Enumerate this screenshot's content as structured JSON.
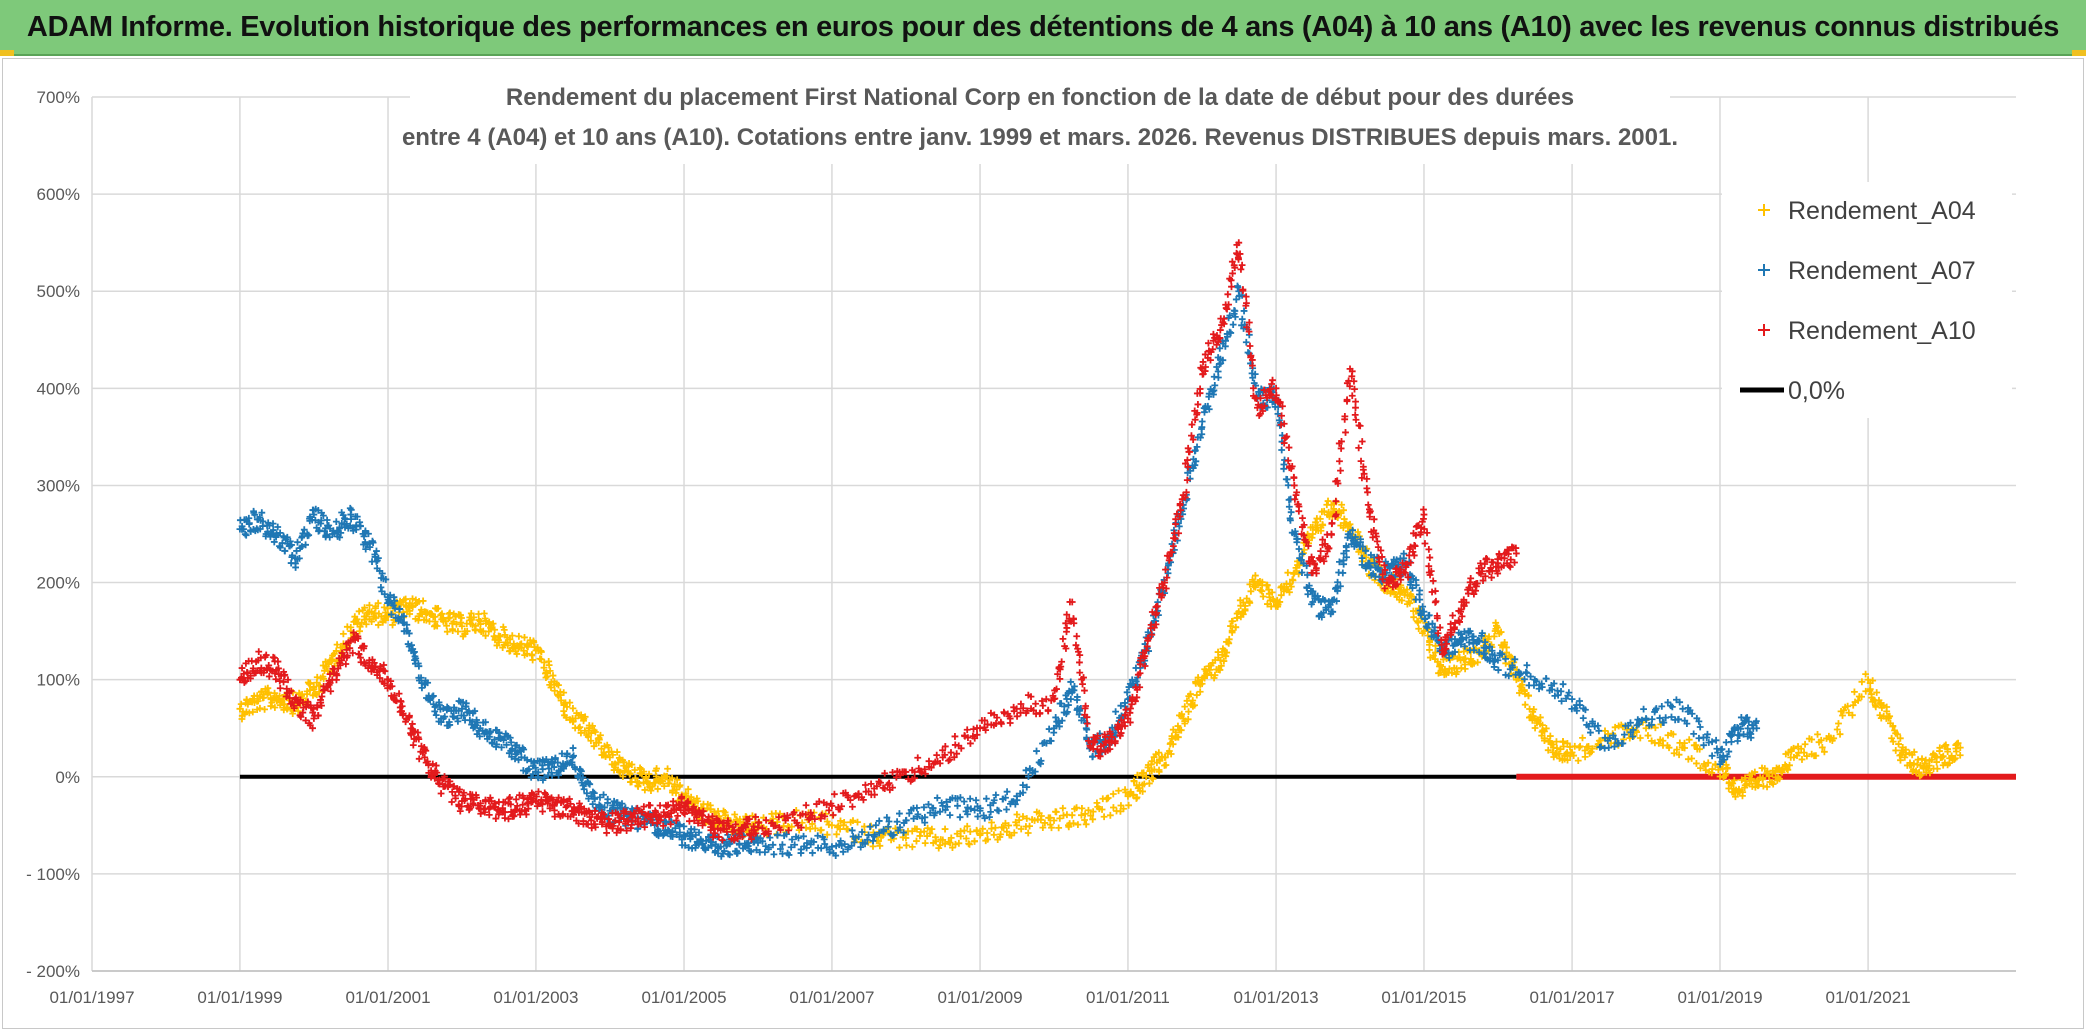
{
  "header": {
    "banner_title": "ADAM Informe. Evolution historique des performances en euros pour des détentions de 4 ans (A04) à 10 ans (A10) avec les revenus connus distribués"
  },
  "chart_data": {
    "type": "scatter",
    "title_line1": "Rendement du placement First National Corp en fonction de la date de début pour des durées",
    "title_line2": "entre 4 (A04) et 10 ans (A10). Cotations entre janv. 1999 et mars. 2026. Revenus DISTRIBUES depuis mars. 2001.",
    "x_tick_labels": [
      "01/01/1997",
      "01/01/1999",
      "01/01/2001",
      "01/01/2003",
      "01/01/2005",
      "01/01/2007",
      "01/01/2009",
      "01/01/2011",
      "01/01/2013",
      "01/01/2015",
      "01/01/2017",
      "01/01/2019",
      "01/01/2021"
    ],
    "y_tick_labels": [
      "700%",
      "600%",
      "500%",
      "400%",
      "300%",
      "200%",
      "100%",
      "0%",
      "- 100%",
      "- 200%"
    ],
    "y_ticks": [
      700,
      600,
      500,
      400,
      300,
      200,
      100,
      0,
      -100,
      -200
    ],
    "xlim": [
      "1997-01-01",
      "2023-01-01"
    ],
    "ylim": [
      -200,
      700
    ],
    "grid": true,
    "legend_position": "top-right",
    "series": [
      {
        "name": "Rendement_A04",
        "color": "#ffc000",
        "marker": "+",
        "points": [
          [
            "1999-01-01",
            70
          ],
          [
            "1999-04-01",
            78
          ],
          [
            "1999-07-01",
            82
          ],
          [
            "1999-10-01",
            75
          ],
          [
            "2000-01-01",
            90
          ],
          [
            "2000-04-01",
            120
          ],
          [
            "2000-07-01",
            150
          ],
          [
            "2000-10-01",
            170
          ],
          [
            "2001-01-01",
            165
          ],
          [
            "2001-04-01",
            175
          ],
          [
            "2001-07-01",
            170
          ],
          [
            "2001-10-01",
            160
          ],
          [
            "2002-01-01",
            155
          ],
          [
            "2002-04-01",
            160
          ],
          [
            "2002-07-01",
            145
          ],
          [
            "2002-10-01",
            135
          ],
          [
            "2003-01-01",
            130
          ],
          [
            "2003-04-01",
            95
          ],
          [
            "2003-07-01",
            60
          ],
          [
            "2003-10-01",
            45
          ],
          [
            "2004-01-01",
            20
          ],
          [
            "2004-04-01",
            5
          ],
          [
            "2004-07-01",
            -5
          ],
          [
            "2004-10-01",
            0
          ],
          [
            "2005-01-01",
            -20
          ],
          [
            "2005-04-01",
            -35
          ],
          [
            "2005-07-01",
            -45
          ],
          [
            "2005-10-01",
            -50
          ],
          [
            "2006-01-01",
            -52
          ],
          [
            "2006-07-01",
            -45
          ],
          [
            "2007-01-01",
            -50
          ],
          [
            "2007-07-01",
            -60
          ],
          [
            "2008-01-01",
            -63
          ],
          [
            "2008-07-01",
            -65
          ],
          [
            "2009-01-01",
            -60
          ],
          [
            "2009-07-01",
            -50
          ],
          [
            "2010-01-01",
            -45
          ],
          [
            "2010-07-01",
            -40
          ],
          [
            "2011-01-01",
            -20
          ],
          [
            "2011-04-01",
            0
          ],
          [
            "2011-07-01",
            20
          ],
          [
            "2011-10-01",
            60
          ],
          [
            "2012-01-01",
            100
          ],
          [
            "2012-04-01",
            120
          ],
          [
            "2012-07-01",
            170
          ],
          [
            "2012-10-01",
            200
          ],
          [
            "2013-01-01",
            180
          ],
          [
            "2013-04-01",
            210
          ],
          [
            "2013-07-01",
            250
          ],
          [
            "2013-10-01",
            280
          ],
          [
            "2014-01-01",
            260
          ],
          [
            "2014-04-01",
            220
          ],
          [
            "2014-07-01",
            200
          ],
          [
            "2014-10-01",
            190
          ],
          [
            "2015-01-01",
            150
          ],
          [
            "2015-04-01",
            110
          ],
          [
            "2015-07-01",
            120
          ],
          [
            "2015-10-01",
            130
          ],
          [
            "2016-01-01",
            150
          ],
          [
            "2016-04-01",
            100
          ],
          [
            "2016-07-01",
            60
          ],
          [
            "2016-10-01",
            30
          ],
          [
            "2017-01-01",
            25
          ],
          [
            "2017-07-01",
            40
          ],
          [
            "2018-01-01",
            50
          ],
          [
            "2018-07-01",
            30
          ],
          [
            "2019-01-01",
            10
          ],
          [
            "2019-04-01",
            -15
          ],
          [
            "2019-07-01",
            -5
          ],
          [
            "2019-10-01",
            5
          ],
          [
            "2020-01-01",
            20
          ],
          [
            "2020-07-01",
            40
          ],
          [
            "2021-01-01",
            100
          ],
          [
            "2021-04-01",
            60
          ],
          [
            "2021-07-01",
            20
          ],
          [
            "2021-10-01",
            10
          ],
          [
            "2022-01-01",
            20
          ],
          [
            "2022-04-01",
            30
          ]
        ]
      },
      {
        "name": "Rendement_A07",
        "color": "#1f77b4",
        "marker": "+",
        "points": [
          [
            "1999-01-01",
            255
          ],
          [
            "1999-04-01",
            265
          ],
          [
            "1999-07-01",
            250
          ],
          [
            "1999-10-01",
            225
          ],
          [
            "2000-01-01",
            270
          ],
          [
            "2000-04-01",
            250
          ],
          [
            "2000-07-01",
            270
          ],
          [
            "2000-10-01",
            240
          ],
          [
            "2001-01-01",
            185
          ],
          [
            "2001-04-01",
            150
          ],
          [
            "2001-07-01",
            95
          ],
          [
            "2001-10-01",
            60
          ],
          [
            "2002-01-01",
            70
          ],
          [
            "2002-04-01",
            50
          ],
          [
            "2002-07-01",
            40
          ],
          [
            "2002-10-01",
            25
          ],
          [
            "2003-01-01",
            5
          ],
          [
            "2003-04-01",
            10
          ],
          [
            "2003-07-01",
            20
          ],
          [
            "2003-10-01",
            -20
          ],
          [
            "2004-01-01",
            -35
          ],
          [
            "2004-04-01",
            -40
          ],
          [
            "2004-07-01",
            -45
          ],
          [
            "2004-10-01",
            -55
          ],
          [
            "2005-01-01",
            -60
          ],
          [
            "2005-04-01",
            -70
          ],
          [
            "2005-07-01",
            -72
          ],
          [
            "2005-10-01",
            -70
          ],
          [
            "2006-01-01",
            -68
          ],
          [
            "2006-07-01",
            -70
          ],
          [
            "2007-01-01",
            -72
          ],
          [
            "2007-07-01",
            -60
          ],
          [
            "2008-01-01",
            -45
          ],
          [
            "2008-07-01",
            -30
          ],
          [
            "2009-01-01",
            -35
          ],
          [
            "2009-07-01",
            -20
          ],
          [
            "2010-01-01",
            50
          ],
          [
            "2010-04-01",
            90
          ],
          [
            "2010-07-01",
            30
          ],
          [
            "2010-10-01",
            40
          ],
          [
            "2011-01-01",
            80
          ],
          [
            "2011-04-01",
            130
          ],
          [
            "2011-07-01",
            200
          ],
          [
            "2011-10-01",
            280
          ],
          [
            "2012-01-01",
            360
          ],
          [
            "2012-04-01",
            430
          ],
          [
            "2012-07-01",
            500
          ],
          [
            "2012-10-01",
            390
          ],
          [
            "2013-01-01",
            390
          ],
          [
            "2013-04-01",
            250
          ],
          [
            "2013-07-01",
            180
          ],
          [
            "2013-10-01",
            170
          ],
          [
            "2014-01-01",
            250
          ],
          [
            "2014-04-01",
            220
          ],
          [
            "2014-07-01",
            210
          ],
          [
            "2014-10-01",
            220
          ],
          [
            "2015-01-01",
            170
          ],
          [
            "2015-04-01",
            130
          ],
          [
            "2015-07-01",
            140
          ],
          [
            "2015-10-01",
            140
          ],
          [
            "2016-01-01",
            120
          ],
          [
            "2016-07-01",
            100
          ],
          [
            "2017-01-01",
            80
          ],
          [
            "2017-07-01",
            30
          ],
          [
            "2018-01-01",
            60
          ],
          [
            "2018-07-01",
            70
          ],
          [
            "2019-01-01",
            20
          ],
          [
            "2019-04-01",
            50
          ],
          [
            "2019-07-01",
            50
          ]
        ]
      },
      {
        "name": "Rendement_A10",
        "color": "#e31a1c",
        "marker": "+",
        "points": [
          [
            "1999-01-01",
            100
          ],
          [
            "1999-04-01",
            120
          ],
          [
            "1999-07-01",
            110
          ],
          [
            "1999-10-01",
            80
          ],
          [
            "2000-01-01",
            60
          ],
          [
            "2000-04-01",
            100
          ],
          [
            "2000-07-01",
            140
          ],
          [
            "2000-10-01",
            120
          ],
          [
            "2001-01-01",
            100
          ],
          [
            "2001-04-01",
            60
          ],
          [
            "2001-07-01",
            20
          ],
          [
            "2001-10-01",
            -10
          ],
          [
            "2002-01-01",
            -25
          ],
          [
            "2002-04-01",
            -30
          ],
          [
            "2002-07-01",
            -35
          ],
          [
            "2002-10-01",
            -30
          ],
          [
            "2003-01-01",
            -25
          ],
          [
            "2003-04-01",
            -30
          ],
          [
            "2003-07-01",
            -35
          ],
          [
            "2003-10-01",
            -45
          ],
          [
            "2004-01-01",
            -48
          ],
          [
            "2004-04-01",
            -45
          ],
          [
            "2004-07-01",
            -40
          ],
          [
            "2004-10-01",
            -40
          ],
          [
            "2005-01-01",
            -30
          ],
          [
            "2005-04-01",
            -45
          ],
          [
            "2005-07-01",
            -55
          ],
          [
            "2005-10-01",
            -55
          ],
          [
            "2006-01-01",
            -52
          ],
          [
            "2006-07-01",
            -45
          ],
          [
            "2007-01-01",
            -30
          ],
          [
            "2007-07-01",
            -15
          ],
          [
            "2008-01-01",
            5
          ],
          [
            "2008-07-01",
            20
          ],
          [
            "2009-01-01",
            50
          ],
          [
            "2009-07-01",
            70
          ],
          [
            "2010-01-01",
            80
          ],
          [
            "2010-04-01",
            180
          ],
          [
            "2010-07-01",
            30
          ],
          [
            "2010-10-01",
            35
          ],
          [
            "2011-01-01",
            60
          ],
          [
            "2011-04-01",
            130
          ],
          [
            "2011-07-01",
            200
          ],
          [
            "2011-10-01",
            290
          ],
          [
            "2012-01-01",
            420
          ],
          [
            "2012-04-01",
            460
          ],
          [
            "2012-07-01",
            550
          ],
          [
            "2012-10-01",
            380
          ],
          [
            "2013-01-01",
            400
          ],
          [
            "2013-04-01",
            300
          ],
          [
            "2013-07-01",
            210
          ],
          [
            "2013-10-01",
            250
          ],
          [
            "2014-01-01",
            420
          ],
          [
            "2014-04-01",
            280
          ],
          [
            "2014-07-01",
            200
          ],
          [
            "2014-10-01",
            210
          ],
          [
            "2015-01-01",
            270
          ],
          [
            "2015-04-01",
            130
          ],
          [
            "2015-07-01",
            170
          ],
          [
            "2015-10-01",
            210
          ],
          [
            "2016-01-01",
            220
          ],
          [
            "2016-04-01",
            230
          ]
        ]
      },
      {
        "name": "0,0%",
        "color": "#000000",
        "type": "line",
        "points": [
          [
            "1999-01-01",
            0
          ],
          [
            "2016-04-01",
            0
          ]
        ]
      },
      {
        "name": "Rendement_A10 (zero segment)",
        "color": "#e31a1c",
        "type": "line",
        "legend": false,
        "points": [
          [
            "2016-04-01",
            0
          ],
          [
            "2023-01-01",
            0
          ]
        ]
      }
    ]
  }
}
